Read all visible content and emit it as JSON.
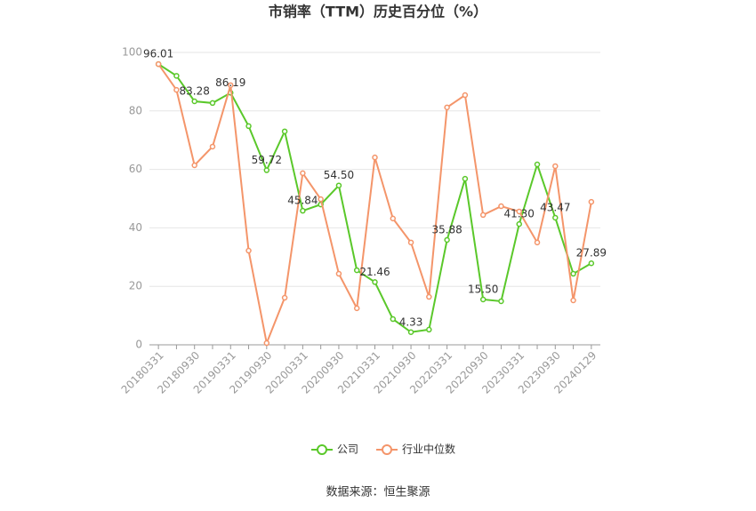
{
  "chart_data": {
    "type": "line",
    "title": "市销率（TTM）历史百分位（%）",
    "source": "数据来源：恒生聚源",
    "categories": [
      "20180331",
      null,
      "20180930",
      null,
      "20190331",
      null,
      "20190930",
      null,
      "20200331",
      null,
      "20200930",
      null,
      "20210331",
      null,
      "20210930",
      null,
      "20220331",
      null,
      "20220930",
      null,
      "20230331",
      null,
      "20230930",
      null,
      "20240129"
    ],
    "series": [
      {
        "name": "公司",
        "color": "#5ac82a",
        "values": [
          96.01,
          92,
          83.28,
          82.7,
          86.19,
          74.8,
          59.72,
          73,
          45.84,
          48,
          54.5,
          25.5,
          21.46,
          8.8,
          4.33,
          5.2,
          35.88,
          56.8,
          15.5,
          14.9,
          41.3,
          61.7,
          43.47,
          24.3,
          27.89
        ],
        "value_labels": [
          "96.01",
          null,
          "83.28",
          null,
          "86.19",
          null,
          "59.72",
          null,
          "45.84",
          null,
          "54.50",
          null,
          "21.46",
          null,
          "4.33",
          null,
          "35.88",
          null,
          "15.50",
          null,
          "41.30",
          null,
          "43.47",
          null,
          "27.89"
        ]
      },
      {
        "name": "行业中位数",
        "color": "#f4956a",
        "values": [
          96,
          87.2,
          61.4,
          67.8,
          88.8,
          32.2,
          0.6,
          16.1,
          58.7,
          49.8,
          24.3,
          12.5,
          64.1,
          43.2,
          35,
          16.4,
          81.2,
          85.4,
          44.4,
          47.4,
          45.6,
          35,
          61.1,
          15.2,
          48.9
        ]
      }
    ],
    "ylim": [
      0,
      100
    ],
    "yticks": [
      0,
      20,
      40,
      60,
      80,
      100
    ],
    "grid": true,
    "legend": "bottom"
  }
}
